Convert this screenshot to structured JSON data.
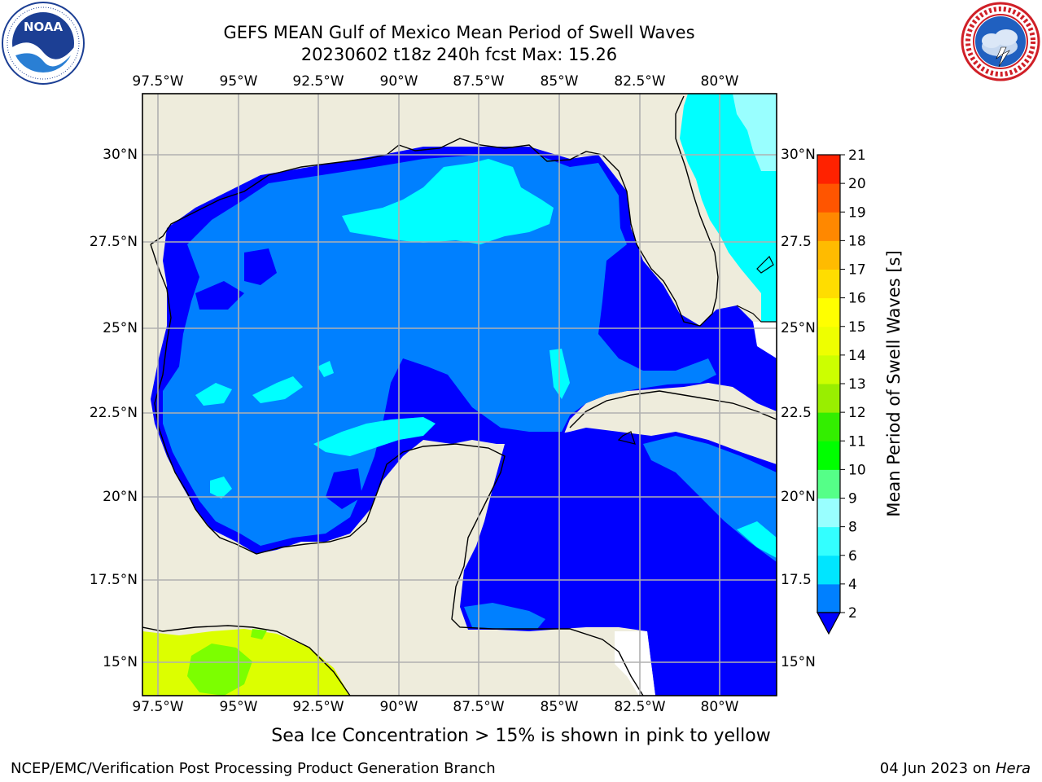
{
  "title": {
    "line1": "GEFS MEAN Gulf of Mexico Mean Period of Swell Waves",
    "line2": "20230602 t18z 240h fcst   Max: 15.26"
  },
  "logos": {
    "left": {
      "name": "NOAA",
      "ring_text": "NATIONAL OCEANIC AND ATMOSPHERIC ADMINISTRATION · U.S. DEPARTMENT OF COMMERCE"
    },
    "right": {
      "name": "NATIONAL WEATHER SERVICE"
    }
  },
  "map": {
    "lon_labels": [
      "97.5°W",
      "95°W",
      "92.5°W",
      "90°W",
      "87.5°W",
      "85°W",
      "82.5°W",
      "80°W"
    ],
    "lat_labels_left": [
      "30°N",
      "27.5°N",
      "25°N",
      "22.5°N",
      "20°N",
      "17.5°N",
      "15°N"
    ],
    "lat_labels_right": [
      "30°N",
      "27.5",
      "25°N",
      "22.5",
      "20°N",
      "17.5",
      "15°N"
    ],
    "colors": {
      "land": "#eeecdc",
      "ocean_dark": "#0000ff",
      "ocean_mid": "#0080ff",
      "cyan": "#00ffff",
      "light_cyan": "#99ffff",
      "yellow_green": "#dcff00",
      "green": "#7cff00"
    }
  },
  "colorbar": {
    "title": "Mean Period of Swell Waves [s]",
    "levels": [
      2,
      4,
      6,
      8,
      9,
      10,
      11,
      12,
      13,
      14,
      15,
      16,
      17,
      18,
      19,
      20,
      21
    ],
    "colors": [
      "#0080ff",
      "#00e5ff",
      "#33ffff",
      "#99ffff",
      "#55ff88",
      "#00ff00",
      "#33ee00",
      "#99ee00",
      "#ccff00",
      "#eeff00",
      "#ffff00",
      "#ffdd00",
      "#ffbb00",
      "#ff8800",
      "#ff5500",
      "#ff2200"
    ],
    "extend_color": "#0000ff"
  },
  "footer": {
    "note": "Sea Ice Concentration > 15% is shown in pink to yellow",
    "left": "NCEP/EMC/Verification Post Processing Product Generation Branch",
    "date": "04 Jun 2023 on",
    "host": "Hera"
  }
}
